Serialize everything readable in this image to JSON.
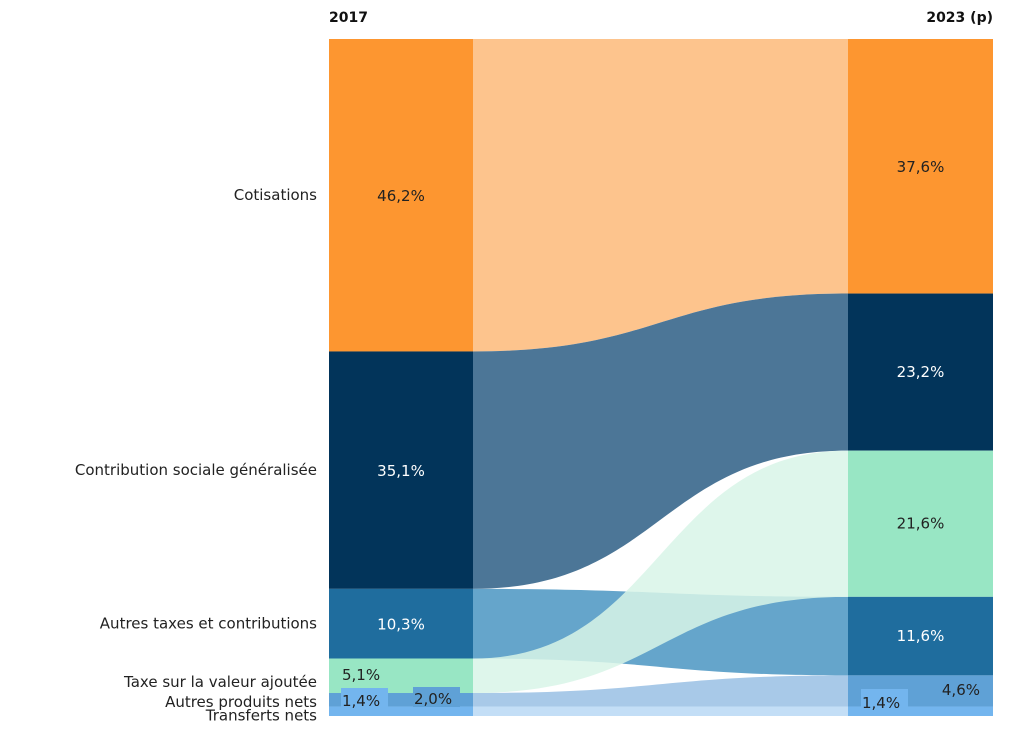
{
  "chart_data": {
    "type": "sankey",
    "title": "",
    "columns": [
      "2017",
      "2023 (p)"
    ],
    "categories": [
      "Cotisations",
      "Contribution sociale généralisée",
      "Autres taxes et contributions",
      "Taxe sur la valeur ajoutée",
      "Autres produits nets",
      "Transferts nets"
    ],
    "left_order": [
      "Cotisations",
      "Contribution sociale généralisée",
      "Autres taxes et contributions",
      "Taxe sur la valeur ajoutée",
      "Autres produits nets",
      "Transferts nets"
    ],
    "right_order": [
      "Cotisations",
      "Contribution sociale généralisée",
      "Taxe sur la valeur ajoutée",
      "Autres taxes et contributions",
      "Autres produits nets",
      "Transferts nets"
    ],
    "series": [
      {
        "name": "2017",
        "values": [
          46.2,
          35.1,
          10.3,
          5.1,
          2.0,
          1.4
        ],
        "labels": [
          "46,2%",
          "35,1%",
          "10,3%",
          "5,1%",
          "2,0%",
          "1,4%"
        ]
      },
      {
        "name": "2023 (p)",
        "values": [
          37.6,
          23.2,
          11.6,
          21.6,
          4.6,
          1.4
        ],
        "labels": [
          "37,6%",
          "23,2%",
          "11,6%",
          "21,6%",
          "4,6%",
          "1,4%"
        ]
      }
    ],
    "colors": {
      "Cotisations": {
        "node": "#fd9630",
        "flow": "#fdc48d",
        "text": "#222222"
      },
      "Contribution sociale généralisée": {
        "node": "#02345a",
        "flow": "#4c7697",
        "text": "#ffffff"
      },
      "Autres taxes et contributions": {
        "node": "#1f6d9e",
        "flow": "#65a5cb",
        "text": "#ffffff"
      },
      "Taxe sur la valeur ajoutée": {
        "node": "#98e6c4",
        "flow": "#d8f4e8",
        "text": "#222222"
      },
      "Autres produits nets": {
        "node": "#5fa1d6",
        "flow": "#a8c9e8",
        "text": "#222222"
      },
      "Transferts nets": {
        "node": "#73b5ee",
        "flow": "#c3def6",
        "text": "#222222"
      }
    }
  }
}
